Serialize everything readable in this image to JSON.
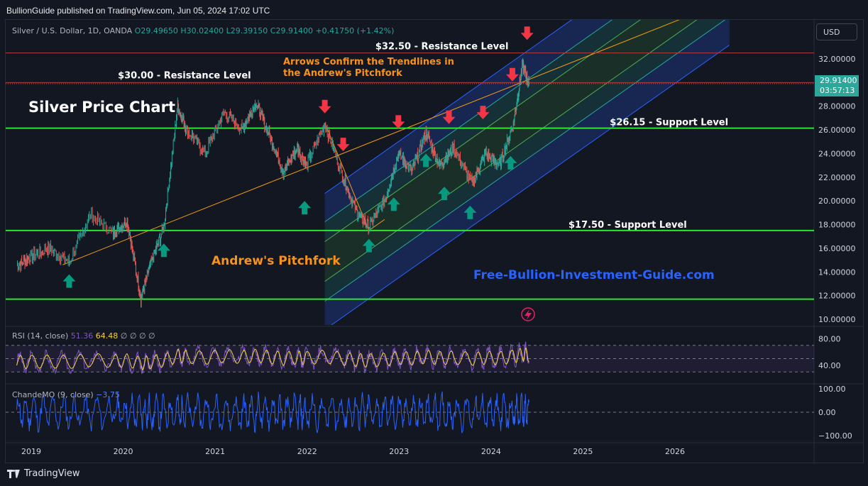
{
  "header": {
    "published": "BullionGuide published on TradingView.com, Jun 05, 2024 17:02 UTC"
  },
  "legend": {
    "symbol": "Silver / U.S. Dollar, 1D, OANDA",
    "o_label": "O",
    "o": "29.49650",
    "h_label": "H",
    "h": "30.02400",
    "l_label": "L",
    "l": "29.39150",
    "c_label": "C",
    "c": "29.91400",
    "change": "+0.41750 (+1.42%)"
  },
  "currency_button": "USD",
  "last_price": {
    "value": "29.91400",
    "countdown": "03:57:13"
  },
  "rsi": {
    "label": "RSI (14, close)",
    "value": "51.36",
    "ma": "64.48",
    "extras": "∅ ∅ ∅ ∅",
    "ticks": [
      "80.00",
      "40.00"
    ]
  },
  "cmo": {
    "label": "ChandeMO (9, close)",
    "value": "−3.75",
    "ticks": [
      "100.00",
      "0.00",
      "−100.00"
    ]
  },
  "footer": {
    "brand": "TradingView"
  },
  "colors": {
    "background": "#131722",
    "support_line": "#2ee62e",
    "resistance_line": "#b33a3a",
    "pitchfork_median": "#f39c12",
    "up_arrow": "#089981",
    "down_arrow": "#f23645",
    "rsi_line": "#7e57c2",
    "rsi_ma": "#f5d142",
    "cmo_line": "#2962ff",
    "watermark": "#2962ff",
    "annotation_orange": "#f7931a"
  },
  "chart_data": {
    "type": "line",
    "title": "Silver Price Chart",
    "watermark": "Free-Bullion-Investment-Guide.com",
    "x_ticks": [
      "2019",
      "2020",
      "2021",
      "2022",
      "2023",
      "2024",
      "2025",
      "2026"
    ],
    "y_ticks": [
      "32.00000",
      "30.00000",
      "28.00000",
      "26.00000",
      "24.00000",
      "22.00000",
      "20.00000",
      "18.00000",
      "16.00000",
      "14.00000",
      "12.00000",
      "10.00000"
    ],
    "ylim": [
      10,
      33.5
    ],
    "series": [
      {
        "name": "Silver / U.S. Dollar",
        "x": [
          2018.85,
          2019.0,
          2019.2,
          2019.42,
          2019.65,
          2019.9,
          2020.05,
          2020.2,
          2020.3,
          2020.45,
          2020.6,
          2020.7,
          2020.9,
          2021.1,
          2021.3,
          2021.45,
          2021.6,
          2021.75,
          2021.9,
          2022.0,
          2022.2,
          2022.4,
          2022.55,
          2022.68,
          2022.85,
          2023.0,
          2023.15,
          2023.3,
          2023.45,
          2023.6,
          2023.8,
          2023.95,
          2024.1,
          2024.25,
          2024.35,
          2024.42
        ],
        "values": [
          14.5,
          15.3,
          16.0,
          14.8,
          18.8,
          17.3,
          18.3,
          11.8,
          14.5,
          17.8,
          28.0,
          26.0,
          24.0,
          27.5,
          26.0,
          28.3,
          25.5,
          22.5,
          24.5,
          23.0,
          26.5,
          22.0,
          19.0,
          17.8,
          20.0,
          24.0,
          22.5,
          25.8,
          23.0,
          24.5,
          21.5,
          24.0,
          23.0,
          26.5,
          31.5,
          29.9
        ]
      }
    ],
    "levels": [
      {
        "label": "$32.50 - Resistance Level",
        "value": 32.5,
        "kind": "resistance"
      },
      {
        "label": "$30.00 - Resistance Level",
        "value": 30.0,
        "kind": "resistance"
      },
      {
        "label": "$26.15 - Support Level",
        "value": 26.15,
        "kind": "support"
      },
      {
        "label": "$17.50 - Support Level",
        "value": 17.5,
        "kind": "support"
      },
      {
        "label": "",
        "value": 11.7,
        "kind": "support"
      }
    ],
    "annotations": [
      "Arrows Confirm the Trendlines in",
      "the Andrew's Pitchfork",
      "Andrew's Pitchfork"
    ],
    "up_arrows": [
      [
        2019.42,
        13.2
      ],
      [
        2020.45,
        15.8
      ],
      [
        2021.98,
        19.4
      ],
      [
        2022.68,
        16.2
      ],
      [
        2022.95,
        19.7
      ],
      [
        2023.3,
        23.4
      ],
      [
        2023.5,
        20.6
      ],
      [
        2023.78,
        19.0
      ],
      [
        2024.22,
        23.2
      ]
    ],
    "down_arrows": [
      [
        2022.2,
        28.0
      ],
      [
        2022.4,
        24.8
      ],
      [
        2023.0,
        26.7
      ],
      [
        2023.55,
        27.1
      ],
      [
        2023.92,
        27.5
      ],
      [
        2024.24,
        30.7
      ],
      [
        2024.4,
        34.2
      ]
    ]
  }
}
